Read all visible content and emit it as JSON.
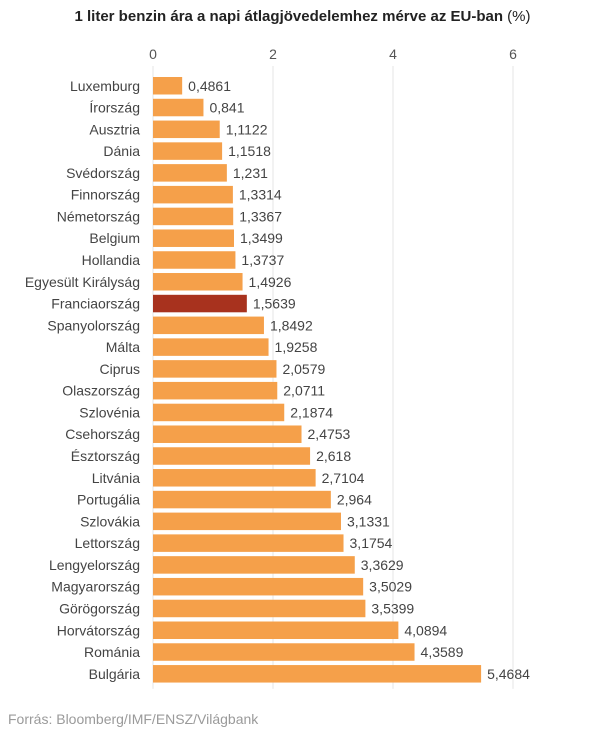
{
  "chart_data": {
    "type": "bar",
    "orientation": "horizontal",
    "title": "1 liter benzin ára a napi átlagjövedelemhez mérve az EU-ban",
    "title_unit": "(%)",
    "xlim": [
      0,
      6
    ],
    "xticks": [
      0,
      2,
      4,
      6
    ],
    "grid": true,
    "bar_color": "#f5a04a",
    "highlight_color": "#a8321e",
    "highlight_category": "Franciaország",
    "categories": [
      "Luxemburg",
      "Írország",
      "Ausztria",
      "Dánia",
      "Svédország",
      "Finnország",
      "Németország",
      "Belgium",
      "Hollandia",
      "Egyesült Királyság",
      "Franciaország",
      "Spanyolország",
      "Málta",
      "Ciprus",
      "Olaszország",
      "Szlovénia",
      "Csehország",
      "Észtország",
      "Litvánia",
      "Portugália",
      "Szlovákia",
      "Lettország",
      "Lengyelország",
      "Magyarország",
      "Görögország",
      "Horvátország",
      "Románia",
      "Bulgária"
    ],
    "values": [
      0.4861,
      0.841,
      1.1122,
      1.1518,
      1.231,
      1.3314,
      1.3367,
      1.3499,
      1.3737,
      1.4926,
      1.5639,
      1.8492,
      1.9258,
      2.0579,
      2.0711,
      2.1874,
      2.4753,
      2.618,
      2.7104,
      2.964,
      3.1331,
      3.1754,
      3.3629,
      3.5029,
      3.5399,
      4.0894,
      4.3589,
      5.4684
    ],
    "value_labels": [
      "0,4861",
      "0,841",
      "1,1122",
      "1,1518",
      "1,231",
      "1,3314",
      "1,3367",
      "1,3499",
      "1,3737",
      "1,4926",
      "1,5639",
      "1,8492",
      "1,9258",
      "2,0579",
      "2,0711",
      "2,1874",
      "2,4753",
      "2,618",
      "2,7104",
      "2,964",
      "3,1331",
      "3,1754",
      "3,3629",
      "3,5029",
      "3,5399",
      "4,0894",
      "4,3589",
      "5,4684"
    ]
  },
  "source": "Forrás: Bloomberg/IMF/ENSZ/Világbank"
}
